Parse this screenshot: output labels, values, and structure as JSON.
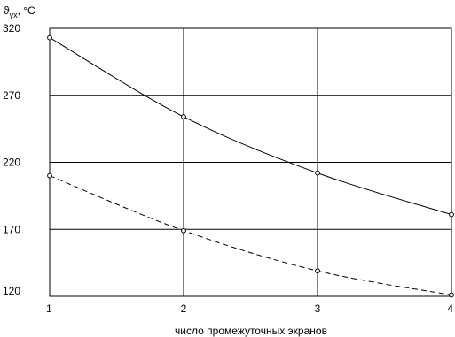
{
  "chart_data": {
    "type": "line",
    "ylabel": {
      "main": "ϑ",
      "sub": "ух",
      "unit": ", °C"
    },
    "xlabel": "число промежуточных экранов",
    "x_ticks": [
      "1",
      "2",
      "3",
      "4"
    ],
    "y_ticks": [
      "120",
      "170",
      "220",
      "270",
      "320"
    ],
    "xlim": [
      1,
      4
    ],
    "ylim": [
      120,
      320
    ],
    "grid": true,
    "series": [
      {
        "style": "solid",
        "color": "#000000",
        "x": [
          1,
          2,
          3,
          4
        ],
        "y": [
          313,
          254,
          212,
          181
        ]
      },
      {
        "style": "dashed",
        "color": "#000000",
        "x": [
          1,
          2,
          3,
          4
        ],
        "y": [
          210,
          169,
          139,
          121
        ]
      }
    ]
  }
}
